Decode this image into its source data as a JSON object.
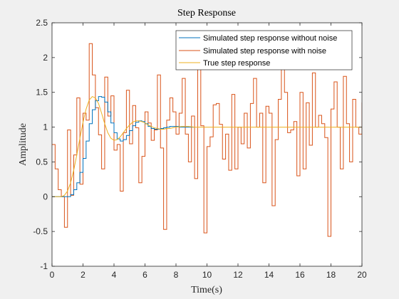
{
  "chart_data": {
    "type": "line",
    "title": "Step Response",
    "xlabel": "Time(s)",
    "ylabel": "Amplitude",
    "xlim": [
      0,
      20
    ],
    "ylim": [
      -1,
      2.5
    ],
    "xticks": [
      0,
      2,
      4,
      6,
      8,
      10,
      12,
      14,
      16,
      18,
      20
    ],
    "yticks": [
      -1,
      -0.5,
      0,
      0.5,
      1,
      1.5,
      2,
      2.5
    ],
    "grid": false,
    "legend_position": "top-right",
    "series": [
      {
        "name": "Simulated step response without noise",
        "color": "#0072bd",
        "style": "stairs",
        "step": 0.2,
        "values": [
          0,
          0,
          0,
          0,
          0,
          0,
          0.03,
          0.1,
          0.2,
          0.35,
          0.55,
          0.8,
          1.05,
          1.25,
          1.38,
          1.44,
          1.43,
          1.36,
          1.22,
          1.06,
          0.92,
          0.83,
          0.8,
          0.82,
          0.88,
          0.95,
          1.02,
          1.07,
          1.09,
          1.08,
          1.05,
          1.01,
          0.98,
          0.97,
          0.97,
          0.98,
          0.99,
          1.0,
          1.01,
          1.01,
          1.01,
          1.0,
          1.0,
          1.0,
          1.0,
          1.0
        ]
      },
      {
        "name": "Simulated step response with noise",
        "color": "#d95319",
        "style": "stairs",
        "step": 0.2,
        "values": [
          0.75,
          0.4,
          0.1,
          0,
          -0.44,
          0.96,
          0.02,
          0.6,
          1.42,
          0.18,
          1.2,
          1.1,
          2.2,
          1.75,
          1.28,
          0.89,
          0.4,
          1.72,
          1.16,
          1.45,
          0.67,
          0.75,
          0.08,
          0.92,
          1.53,
          0.76,
          1.31,
          0.99,
          0.2,
          0.58,
          1.22,
          1.06,
          0.81,
          0.96,
          1.75,
          0.7,
          -0.47,
          1.1,
          1.42,
          1.22,
          0.9,
          1.2,
          1.7,
          0.9,
          0.5,
          1.16,
          0.26,
          2.0,
          1.02,
          -0.52,
          0.72,
          0.86,
          1.32,
          1.34,
          1.04,
          0.54,
          0.9,
          0.38,
          1.47,
          0.4,
          1.0,
          0.76,
          1.2,
          0.7,
          1.34,
          1.7,
          1.0,
          1.2,
          0.2,
          1.3,
          1.2,
          -0.13,
          0.82,
          1.4,
          1.85,
          1.5,
          0.92,
          0.96,
          1.08,
          0.3,
          1.5,
          0.4,
          1.35,
          0.74,
          1.78,
          1.0,
          1.17,
          1.05,
          0.85,
          -0.57,
          1.26,
          1.65,
          1.0,
          0.4,
          1.73,
          1.05,
          0.5,
          1.4,
          1.0,
          0.9,
          1.35
        ]
      },
      {
        "name": "True step response",
        "color": "#edb120",
        "style": "line",
        "x": [
          0,
          0.6,
          0.8,
          1.0,
          1.2,
          1.4,
          1.6,
          1.8,
          2.0,
          2.2,
          2.4,
          2.6,
          2.8,
          3.0,
          3.2,
          3.4,
          3.6,
          3.8,
          4.0,
          4.2,
          4.4,
          4.6,
          4.8,
          5.0,
          5.2,
          5.4,
          5.6,
          5.8,
          6.0,
          6.2,
          6.4,
          6.6,
          6.8,
          7.0,
          7.2,
          7.4,
          7.6,
          7.8,
          8.0,
          8.4,
          8.8,
          9.2,
          9.6,
          10,
          11,
          12,
          14,
          16,
          18,
          20
        ],
        "y": [
          0,
          0,
          0.02,
          0.08,
          0.2,
          0.38,
          0.6,
          0.84,
          1.07,
          1.26,
          1.39,
          1.44,
          1.42,
          1.34,
          1.2,
          1.05,
          0.92,
          0.84,
          0.81,
          0.82,
          0.86,
          0.92,
          0.98,
          1.03,
          1.07,
          1.09,
          1.09,
          1.08,
          1.06,
          1.03,
          1.01,
          0.99,
          0.98,
          0.97,
          0.97,
          0.98,
          0.98,
          0.99,
          1.0,
          1.01,
          1.01,
          1.0,
          1.0,
          1.0,
          1.0,
          1.0,
          1.0,
          1.0,
          1.0,
          1.0
        ]
      }
    ]
  }
}
